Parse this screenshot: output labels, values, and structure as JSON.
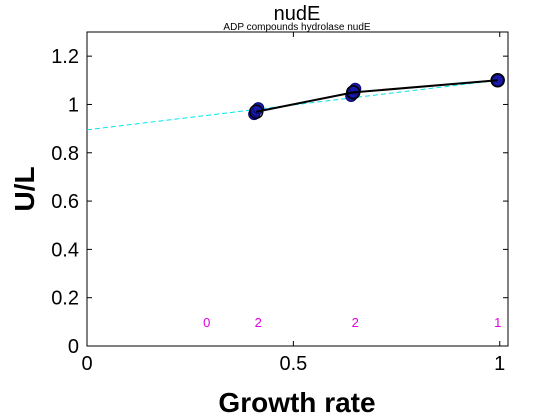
{
  "chart_data": {
    "type": "line",
    "title": "nudE",
    "subtitle": "ADP compounds hydrolase nudE",
    "xlabel": "Growth rate",
    "ylabel": "U/L",
    "xlim": [
      0,
      1.02
    ],
    "ylim": [
      0,
      1.3
    ],
    "xticks": [
      0,
      0.5,
      1
    ],
    "xtick_labels": [
      "0",
      "0.5",
      "1"
    ],
    "yticks": [
      0,
      0.2,
      0.4,
      0.6,
      0.8,
      1,
      1.2
    ],
    "ytick_labels": [
      "0",
      "0.2",
      "0.4",
      "0.6",
      "0.8",
      "1",
      "1.2"
    ],
    "grid": false,
    "series": [
      {
        "style": "black-line-with-circles",
        "color": "#000000",
        "x": [
          0.41,
          0.645,
          0.995
        ],
        "y": [
          0.97,
          1.05,
          1.1
        ]
      },
      {
        "style": "cyan-dashed-fit",
        "color": "#00e5ee",
        "x": [
          0,
          0.995
        ],
        "y": [
          0.895,
          1.1
        ]
      }
    ],
    "replicates": {
      "color": "#1a1aa8",
      "x": [
        0.405,
        0.41,
        0.415,
        0.64,
        0.645,
        0.65,
        0.995
      ],
      "y": [
        0.96,
        0.975,
        0.985,
        1.035,
        1.05,
        1.065,
        1.1
      ]
    },
    "counts": {
      "color": "#e000e0",
      "y": 0.1,
      "x": [
        0.29,
        0.415,
        0.65,
        0.995
      ],
      "labels": [
        "0",
        "2",
        "2",
        "1"
      ]
    }
  }
}
